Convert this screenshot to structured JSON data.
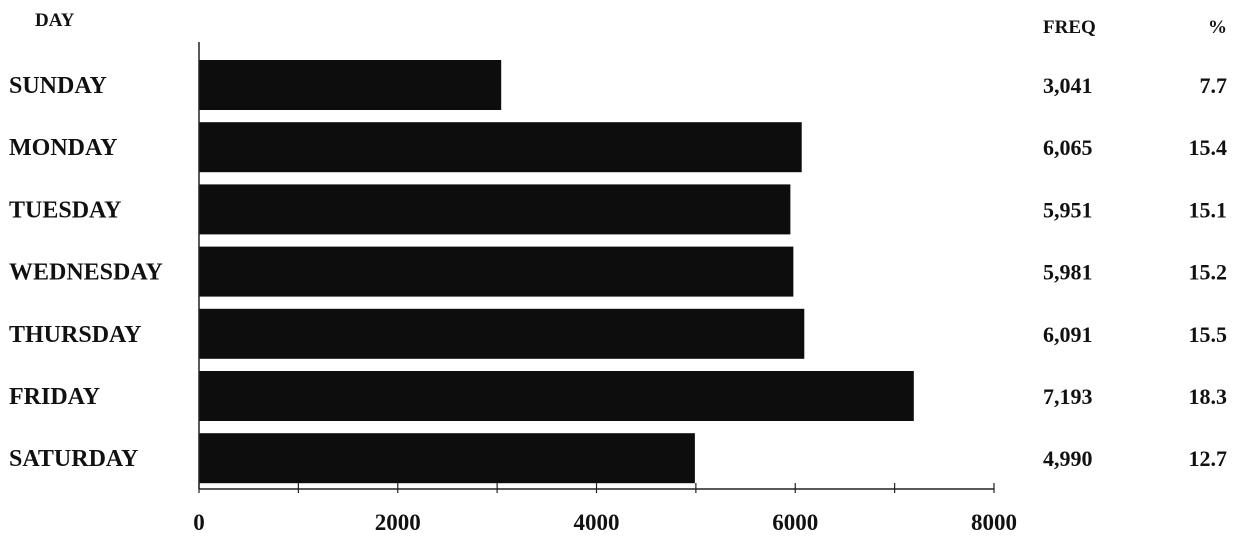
{
  "chart_data": {
    "type": "bar",
    "orientation": "horizontal",
    "headers": {
      "category": "DAY",
      "freq": "FREQ",
      "pct": "%"
    },
    "categories": [
      "SUNDAY",
      "MONDAY",
      "TUESDAY",
      "WEDNESDAY",
      "THURSDAY",
      "FRIDAY",
      "SATURDAY"
    ],
    "values": [
      3041,
      6065,
      5951,
      5981,
      6091,
      7193,
      4990
    ],
    "freq_labels": [
      "3,041",
      "6,065",
      "5,951",
      "5,981",
      "6,091",
      "7,193",
      "4,990"
    ],
    "pct_labels": [
      "7.7",
      "15.4",
      "15.1",
      "15.2",
      "15.5",
      "18.3",
      "12.7"
    ],
    "xlim": [
      0,
      8000
    ],
    "xticks": [
      0,
      2000,
      4000,
      6000,
      8000
    ],
    "xtick_labels": [
      "0",
      "2000",
      "4000",
      "6000",
      "8000"
    ],
    "bar_color": "#0d0d0d",
    "grid": false
  }
}
